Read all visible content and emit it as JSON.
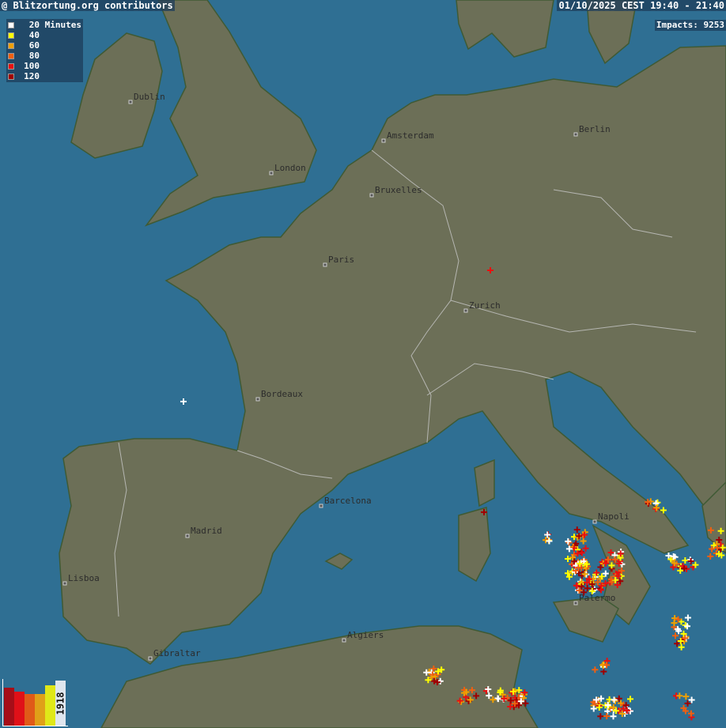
{
  "header": {
    "attribution": "@ Blitzortung.org contributors",
    "time_range": "01/10/2025 CEST 19:40 - 21:40",
    "impacts": "Impacts: 9253"
  },
  "legend": {
    "unit": "Minutes",
    "items": [
      {
        "label": "20",
        "color": "#ffffff"
      },
      {
        "label": "40",
        "color": "#ffff00"
      },
      {
        "label": "60",
        "color": "#f0a000"
      },
      {
        "label": "80",
        "color": "#f06010"
      },
      {
        "label": "100",
        "color": "#e81010"
      },
      {
        "label": "120",
        "color": "#a00000"
      }
    ]
  },
  "histogram": {
    "latest_count": "1918",
    "bars": [
      {
        "age": "120",
        "level": 0.84,
        "color": "#a60e18"
      },
      {
        "age": "100",
        "level": 0.75,
        "color": "#e01018"
      },
      {
        "age": "80",
        "level": 0.71,
        "color": "#e05a18"
      },
      {
        "age": "60",
        "level": 0.7,
        "color": "#e0a018"
      },
      {
        "age": "40",
        "level": 0.89,
        "color": "#e0e818"
      },
      {
        "age": "20",
        "level": 1.0,
        "color": "#dfe6ee"
      }
    ]
  },
  "map": {
    "sea_color": "#2f6f93",
    "land_color": "#6c6f57",
    "cities": [
      "Dublin",
      "London",
      "Amsterdam",
      "Berlin",
      "Bruxelles",
      "Paris",
      "Zurich",
      "Bordeaux",
      "Barcelona",
      "Madrid",
      "Lisboa",
      "Gibraltar",
      "Algiers",
      "Napoli",
      "Palermo"
    ]
  }
}
